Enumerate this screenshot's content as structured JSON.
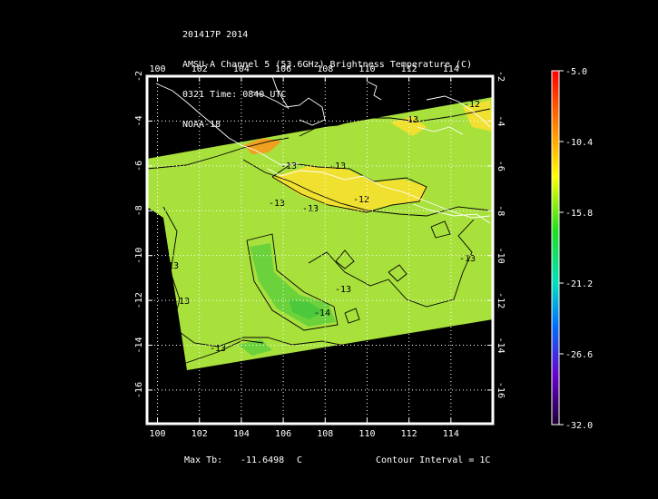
{
  "header": {
    "line1": "201417P 2014",
    "line2": "AMSU-A Channel 5 (53.6GHz) Brightness Temperature (C)",
    "line3": "0321 Time: 0840 UTC",
    "line4": "NOAA-18"
  },
  "map": {
    "lon_range": [
      99.5,
      116
    ],
    "lat_range": [
      -17.5,
      -2
    ],
    "lon_ticks": [
      "100",
      "102",
      "104",
      "106",
      "108",
      "110",
      "112",
      "114"
    ],
    "lat_ticks": [
      "-2",
      "-4",
      "-6",
      "-8",
      "-10",
      "-12",
      "-14",
      "-16"
    ],
    "swath_colors": {
      "base": "#a8e03c",
      "warm": "#f0e030",
      "hot": "#f0a020",
      "cool": "#6cd23c",
      "cold": "#4cc83c"
    },
    "contour_labels": [
      "-12",
      "-13",
      "-13",
      "-13",
      "-12",
      "-13",
      "-13",
      "-13",
      "-13",
      "-14",
      "-13",
      "-13",
      "-13"
    ]
  },
  "colorbar": {
    "range": [
      -32.0,
      -5.0
    ],
    "tick_labels": [
      "-5.0",
      "-10.4",
      "-15.8",
      "-21.2",
      "-26.6",
      "-32.0"
    ]
  },
  "footer": {
    "max_tb_label": "Max Tb:",
    "max_tb_value": "-11.6498",
    "max_tb_unit": "C",
    "contour_interval": "Contour Interval = 1C"
  }
}
